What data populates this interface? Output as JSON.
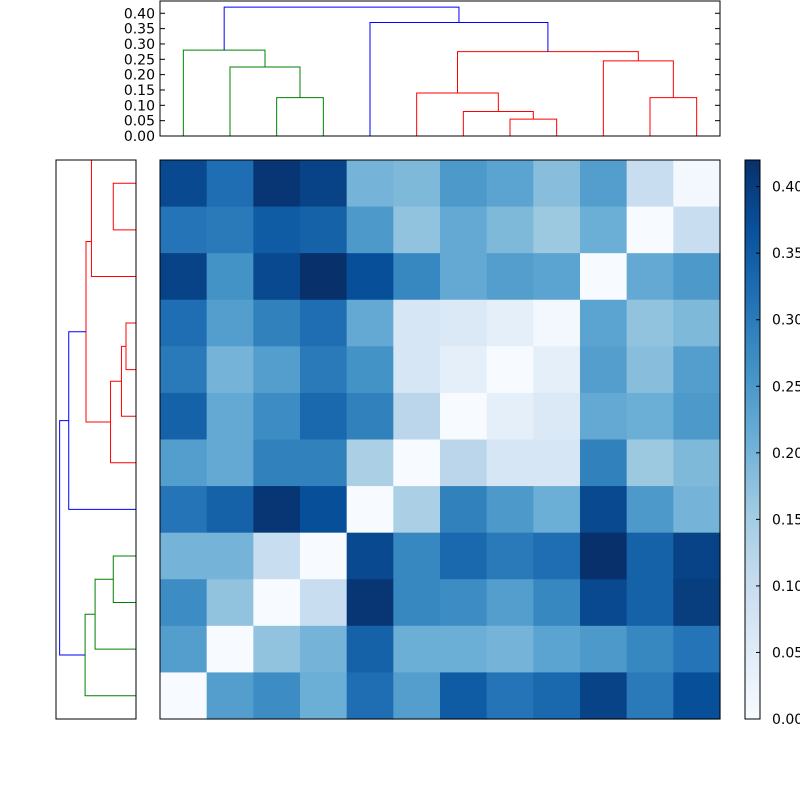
{
  "chart_data": [
    {
      "type": "heatmap",
      "name": "distance-matrix",
      "colormap": "Blues",
      "value_range": [
        0.0,
        0.42
      ],
      "matrix": [
        [
          0.38,
          0.32,
          0.41,
          0.39,
          0.2,
          0.19,
          0.25,
          0.23,
          0.18,
          0.24,
          0.1,
          0.01
        ],
        [
          0.31,
          0.3,
          0.35,
          0.34,
          0.25,
          0.17,
          0.22,
          0.19,
          0.16,
          0.21,
          0.0,
          0.1
        ],
        [
          0.39,
          0.26,
          0.38,
          0.42,
          0.37,
          0.28,
          0.22,
          0.24,
          0.23,
          0.0,
          0.22,
          0.25
        ],
        [
          0.32,
          0.24,
          0.29,
          0.32,
          0.22,
          0.07,
          0.06,
          0.04,
          0.01,
          0.23,
          0.17,
          0.19
        ],
        [
          0.3,
          0.2,
          0.24,
          0.3,
          0.26,
          0.07,
          0.04,
          0.0,
          0.04,
          0.24,
          0.18,
          0.24
        ],
        [
          0.34,
          0.22,
          0.27,
          0.33,
          0.29,
          0.12,
          0.0,
          0.04,
          0.06,
          0.22,
          0.21,
          0.25
        ],
        [
          0.24,
          0.22,
          0.29,
          0.29,
          0.14,
          0.0,
          0.12,
          0.07,
          0.07,
          0.29,
          0.16,
          0.19
        ],
        [
          0.31,
          0.34,
          0.41,
          0.37,
          0.0,
          0.14,
          0.29,
          0.25,
          0.21,
          0.38,
          0.25,
          0.2
        ],
        [
          0.2,
          0.2,
          0.1,
          0.0,
          0.38,
          0.28,
          0.33,
          0.3,
          0.32,
          0.42,
          0.34,
          0.39
        ],
        [
          0.27,
          0.17,
          0.0,
          0.1,
          0.41,
          0.28,
          0.27,
          0.24,
          0.28,
          0.38,
          0.34,
          0.4
        ],
        [
          0.24,
          0.0,
          0.17,
          0.2,
          0.34,
          0.21,
          0.21,
          0.2,
          0.23,
          0.25,
          0.28,
          0.31
        ],
        [
          0.0,
          0.24,
          0.27,
          0.21,
          0.32,
          0.24,
          0.35,
          0.31,
          0.33,
          0.39,
          0.3,
          0.37
        ]
      ]
    },
    {
      "type": "dendrogram",
      "name": "column-dendrogram",
      "orientation": "top",
      "ylim": [
        0.0,
        0.44
      ],
      "yticks": [
        "0.00",
        "0.05",
        "0.10",
        "0.15",
        "0.20",
        "0.25",
        "0.30",
        "0.35",
        "0.40"
      ],
      "links": [
        {
          "left": [
            2.5,
            0.0
          ],
          "right": [
            3.5,
            0.0
          ],
          "height": 0.125,
          "color": "#008000"
        },
        {
          "left": [
            1.5,
            0.0
          ],
          "right": [
            3.0,
            0.125
          ],
          "height": 0.225,
          "color": "#008000"
        },
        {
          "left": [
            0.5,
            0.0
          ],
          "right": [
            2.25,
            0.225
          ],
          "height": 0.28,
          "color": "#008000"
        },
        {
          "left": [
            7.5,
            0.0
          ],
          "right": [
            8.5,
            0.0
          ],
          "height": 0.055,
          "color": "#ff0000"
        },
        {
          "left": [
            6.5,
            0.0
          ],
          "right": [
            8.0,
            0.055
          ],
          "height": 0.08,
          "color": "#ff0000"
        },
        {
          "left": [
            5.5,
            0.0
          ],
          "right": [
            7.25,
            0.08
          ],
          "height": 0.14,
          "color": "#ff0000"
        },
        {
          "left": [
            10.5,
            0.0
          ],
          "right": [
            11.5,
            0.0
          ],
          "height": 0.125,
          "color": "#ff0000"
        },
        {
          "left": [
            9.5,
            0.0
          ],
          "right": [
            11.0,
            0.125
          ],
          "height": 0.245,
          "color": "#ff0000"
        },
        {
          "left": [
            6.375,
            0.14
          ],
          "right": [
            10.25,
            0.245
          ],
          "height": 0.275,
          "color": "#ff0000"
        },
        {
          "left": [
            4.5,
            0.0
          ],
          "right": [
            8.3125,
            0.275
          ],
          "height": 0.37,
          "color": "#0000ff"
        },
        {
          "left": [
            1.375,
            0.28
          ],
          "right": [
            6.40625,
            0.37
          ],
          "height": 0.42,
          "color": "#0000ff"
        }
      ]
    },
    {
      "type": "dendrogram",
      "name": "row-dendrogram",
      "orientation": "left",
      "ylim": [
        0.0,
        0.44
      ],
      "links": [
        {
          "left": [
            0.5,
            0.0
          ],
          "right": [
            1.5,
            0.0
          ],
          "height": 0.125,
          "color": "#ff0000"
        },
        {
          "left": [
            0.0,
            0.125
          ],
          "right": [
            2.5,
            0.0
          ],
          "height": 0.245,
          "color": "#ff0000"
        },
        {
          "left": [
            3.5,
            0.0
          ],
          "right": [
            4.5,
            0.0
          ],
          "height": 0.055,
          "color": "#ff0000"
        },
        {
          "left": [
            4.0,
            0.055
          ],
          "right": [
            5.5,
            0.0
          ],
          "height": 0.08,
          "color": "#ff0000"
        },
        {
          "left": [
            4.75,
            0.08
          ],
          "right": [
            6.5,
            0.0
          ],
          "height": 0.14,
          "color": "#ff0000"
        },
        {
          "left": [
            1.75,
            0.245
          ],
          "right": [
            5.625,
            0.14
          ],
          "height": 0.275,
          "color": "#ff0000"
        },
        {
          "left": [
            3.6875,
            0.275
          ],
          "right": [
            7.5,
            0.0
          ],
          "height": 0.37,
          "color": "#0000ff"
        },
        {
          "left": [
            8.5,
            0.0
          ],
          "right": [
            9.5,
            0.0
          ],
          "height": 0.125,
          "color": "#008000"
        },
        {
          "left": [
            9.0,
            0.125
          ],
          "right": [
            10.5,
            0.0
          ],
          "height": 0.225,
          "color": "#008000"
        },
        {
          "left": [
            9.75,
            0.225
          ],
          "right": [
            11.5,
            0.0
          ],
          "height": 0.28,
          "color": "#008000"
        },
        {
          "left": [
            5.59375,
            0.37
          ],
          "right": [
            10.625,
            0.28
          ],
          "height": 0.42,
          "color": "#0000ff"
        }
      ]
    },
    {
      "type": "colorbar",
      "name": "colorbar",
      "range": [
        0.0,
        0.42
      ],
      "ticks": [
        "0.00",
        "0.05",
        "0.10",
        "0.15",
        "0.20",
        "0.25",
        "0.30",
        "0.35",
        "0.40"
      ]
    }
  ],
  "colors": {
    "cmap_stops": [
      "#f7fbff",
      "#deebf7",
      "#c6dbef",
      "#9ecae1",
      "#6baed6",
      "#4292c6",
      "#2171b5",
      "#08519c",
      "#08306b"
    ],
    "axes_edge": "#000000"
  }
}
